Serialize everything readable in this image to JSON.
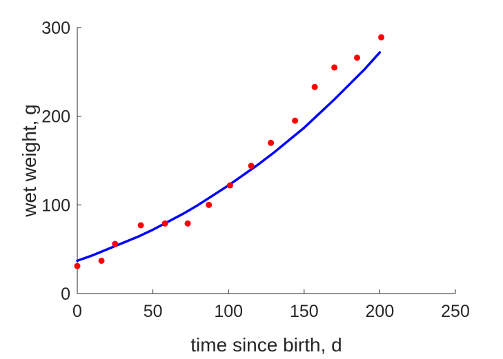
{
  "chart_data": {
    "type": "scatter",
    "title": "",
    "xlabel": "time since birth, d",
    "ylabel": "wet weight, g",
    "xlim": [
      0,
      250
    ],
    "ylim": [
      0,
      300
    ],
    "xticks": [
      "0",
      "50",
      "100",
      "150",
      "200",
      "250"
    ],
    "yticks": [
      "0",
      "100",
      "200",
      "300"
    ],
    "grid": false,
    "box": false,
    "series": [
      {
        "kind": "points",
        "color": "#ff0000",
        "marker": "filled-circle",
        "x": [
          0,
          16,
          25,
          42,
          58,
          73,
          87,
          101,
          115,
          128,
          144,
          157,
          170,
          185,
          201
        ],
        "y": [
          31,
          37,
          56,
          77,
          79,
          79,
          100,
          122,
          144,
          170,
          195,
          233,
          255,
          266,
          289
        ]
      },
      {
        "kind": "line",
        "color": "#0000ff",
        "x": [
          0,
          10,
          20,
          30,
          40,
          50,
          60,
          70,
          80,
          90,
          100,
          110,
          120,
          130,
          140,
          150,
          160,
          170,
          180,
          190,
          200
        ],
        "y": [
          37,
          43,
          50,
          57,
          64,
          72,
          81,
          90,
          100,
          111,
          122,
          134,
          146,
          159,
          173,
          187,
          203,
          219,
          236,
          253,
          272
        ]
      }
    ]
  }
}
